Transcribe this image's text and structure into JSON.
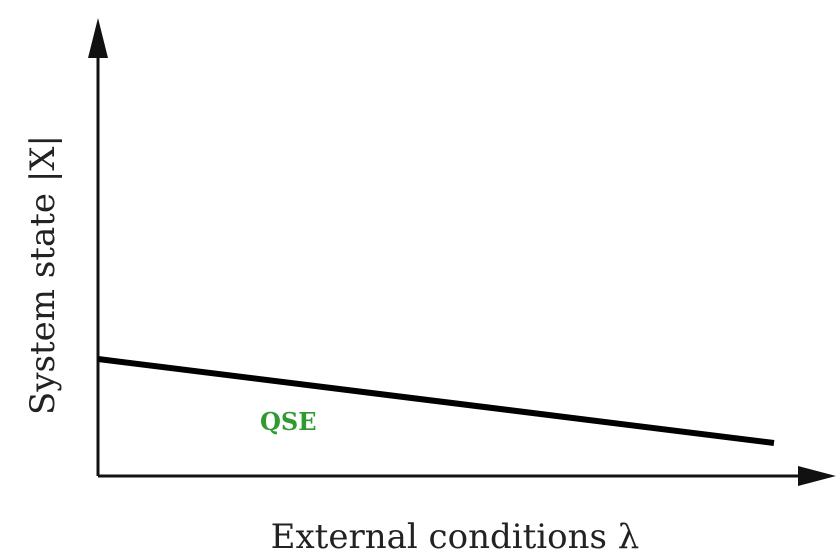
{
  "diagram": {
    "y_axis_label": "System state |X|",
    "x_axis_label": "External conditions λ",
    "curve_label": "QSE",
    "colors": {
      "axis": "#111111",
      "line": "#000000",
      "curve_label": "#2f9a2f",
      "label_text": "#222222"
    }
  }
}
